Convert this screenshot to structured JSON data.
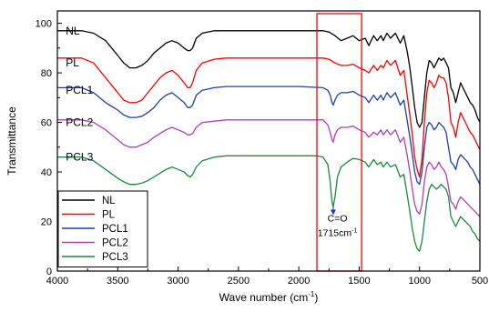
{
  "chart_data": {
    "type": "line",
    "xlabel": "Wave number (cm",
    "xlabel_sup": "-1",
    "xlabel_end": ")",
    "ylabel": "Transmittance",
    "xlim": [
      4000,
      500
    ],
    "ylim": [
      0,
      105
    ],
    "x_reversed": true,
    "x_ticks": [
      4000,
      3500,
      3000,
      2500,
      2000,
      1500,
      1000,
      500
    ],
    "y_ticks": [
      0,
      20,
      40,
      60,
      80,
      100
    ],
    "grid": false,
    "legend_position": "bottom-left",
    "series": [
      {
        "name": "NL",
        "color": "#000000",
        "label": "NL",
        "label_x": 3930,
        "label_y": 97,
        "x": [
          4000,
          3800,
          3700,
          3600,
          3500,
          3450,
          3400,
          3350,
          3300,
          3250,
          3200,
          3150,
          3100,
          3050,
          3000,
          2950,
          2920,
          2900,
          2880,
          2850,
          2800,
          2700,
          2600,
          2400,
          2200,
          2000,
          1800,
          1750,
          1700,
          1650,
          1600,
          1550,
          1500,
          1450,
          1420,
          1380,
          1350,
          1320,
          1300,
          1270,
          1240,
          1200,
          1160,
          1130,
          1100,
          1080,
          1060,
          1040,
          1020,
          1000,
          980,
          960,
          940,
          920,
          900,
          880,
          860,
          840,
          820,
          800,
          780,
          760,
          740,
          720,
          700,
          680,
          660,
          640,
          620,
          600,
          580,
          560,
          540,
          520,
          500
        ],
        "y": [
          97,
          97,
          96,
          93,
          87,
          84,
          82,
          82,
          83,
          85,
          88,
          90,
          92,
          93,
          92,
          90,
          89,
          89,
          90,
          94,
          96,
          97,
          97,
          97,
          97,
          97,
          97,
          96.5,
          95,
          93,
          94,
          95,
          93,
          94,
          91,
          95,
          93,
          95,
          93,
          96,
          94,
          96,
          92,
          95,
          88,
          82,
          74,
          66,
          60,
          58,
          60,
          70,
          80,
          85,
          84,
          82,
          84,
          86,
          85,
          86,
          84,
          82,
          74,
          72,
          68,
          72,
          76,
          74,
          72,
          70,
          68,
          67,
          65,
          62,
          60
        ]
      },
      {
        "name": "PL",
        "color": "#ff0000",
        "label": "PL",
        "label_x": 3930,
        "label_y": 84,
        "x": [
          4000,
          3800,
          3700,
          3600,
          3500,
          3450,
          3400,
          3350,
          3300,
          3250,
          3200,
          3150,
          3100,
          3050,
          3000,
          2950,
          2920,
          2900,
          2880,
          2850,
          2800,
          2700,
          2600,
          2400,
          2200,
          2000,
          1800,
          1750,
          1700,
          1650,
          1600,
          1550,
          1500,
          1450,
          1420,
          1380,
          1350,
          1320,
          1300,
          1270,
          1240,
          1200,
          1160,
          1130,
          1100,
          1080,
          1060,
          1040,
          1020,
          1000,
          980,
          960,
          940,
          920,
          900,
          880,
          860,
          840,
          820,
          800,
          780,
          760,
          740,
          720,
          700,
          680,
          660,
          640,
          620,
          600,
          580,
          560,
          540,
          520,
          500
        ],
        "y": [
          86,
          86,
          84,
          78,
          72,
          69,
          68,
          68,
          69,
          72,
          75,
          78,
          80,
          81,
          79,
          76,
          74,
          74,
          76,
          81,
          84,
          85.5,
          86,
          86,
          86,
          86,
          86,
          85.5,
          84,
          83,
          83,
          83.5,
          82,
          81,
          80,
          83,
          81,
          83,
          82,
          85,
          83,
          85,
          79,
          81,
          70,
          63,
          55,
          46,
          41,
          38,
          45,
          60,
          72,
          77,
          76,
          74,
          76,
          79,
          78,
          78,
          76,
          70,
          60,
          58,
          54,
          60,
          64,
          62,
          60,
          58,
          56,
          55,
          53,
          51,
          49
        ]
      },
      {
        "name": "PCL1",
        "color": "#1f3fa8",
        "label": "PCL1",
        "label_x": 3930,
        "label_y": 73,
        "x": [
          4000,
          3800,
          3700,
          3600,
          3500,
          3450,
          3400,
          3350,
          3300,
          3250,
          3200,
          3150,
          3100,
          3050,
          3000,
          2950,
          2920,
          2900,
          2880,
          2850,
          2800,
          2700,
          2600,
          2400,
          2200,
          2000,
          1800,
          1760,
          1740,
          1725,
          1715,
          1700,
          1680,
          1650,
          1600,
          1550,
          1500,
          1450,
          1420,
          1380,
          1350,
          1320,
          1300,
          1270,
          1240,
          1200,
          1160,
          1130,
          1100,
          1080,
          1060,
          1040,
          1020,
          1000,
          980,
          960,
          940,
          920,
          900,
          880,
          860,
          840,
          820,
          800,
          780,
          760,
          740,
          720,
          700,
          680,
          660,
          640,
          620,
          600,
          580,
          560,
          540,
          520,
          500
        ],
        "y": [
          74,
          74,
          72,
          68,
          65,
          63,
          62,
          62,
          62.5,
          64,
          66,
          69,
          71,
          72,
          70,
          68,
          66,
          66,
          67,
          71,
          73,
          74,
          74.5,
          74.5,
          74.5,
          74.5,
          74,
          73,
          71,
          68,
          67,
          69,
          71,
          72,
          72,
          72.5,
          71,
          70,
          68,
          71,
          69,
          71,
          69,
          72,
          70,
          72,
          67,
          69,
          60,
          54,
          47,
          40,
          36,
          35,
          40,
          50,
          58,
          60,
          59,
          57,
          58,
          60,
          59,
          58,
          56,
          50,
          44,
          43,
          41,
          45,
          47,
          46,
          45,
          44,
          42,
          41,
          39,
          37,
          35
        ]
      },
      {
        "name": "PCL2",
        "color": "#b040b0",
        "label": "PCL2",
        "label_x": 3930,
        "label_y": 60,
        "x": [
          4000,
          3800,
          3700,
          3600,
          3500,
          3450,
          3400,
          3350,
          3300,
          3250,
          3200,
          3150,
          3100,
          3050,
          3000,
          2950,
          2920,
          2900,
          2880,
          2850,
          2800,
          2700,
          2600,
          2400,
          2200,
          2000,
          1800,
          1760,
          1740,
          1725,
          1715,
          1700,
          1680,
          1650,
          1600,
          1550,
          1500,
          1450,
          1420,
          1380,
          1350,
          1320,
          1300,
          1270,
          1240,
          1200,
          1160,
          1130,
          1100,
          1080,
          1060,
          1040,
          1020,
          1000,
          980,
          960,
          940,
          920,
          900,
          880,
          860,
          840,
          820,
          800,
          780,
          760,
          740,
          720,
          700,
          680,
          660,
          640,
          620,
          600,
          580,
          560,
          540,
          520,
          500
        ],
        "y": [
          61,
          61,
          60,
          57,
          53,
          51,
          50,
          50,
          51,
          52,
          54,
          55.5,
          57,
          58,
          57,
          56,
          55,
          55,
          55.5,
          58,
          60,
          60.5,
          61,
          61,
          61,
          61,
          61,
          59,
          56,
          53,
          52,
          55,
          57,
          58,
          58,
          58.5,
          57,
          56,
          54,
          56,
          55,
          57,
          55,
          57,
          55,
          57,
          52,
          54,
          46,
          40,
          33,
          27,
          24,
          23,
          27,
          36,
          42,
          44,
          43,
          41,
          42,
          44,
          42,
          41,
          39,
          34,
          28,
          27,
          25,
          28,
          30,
          29,
          28,
          27,
          26,
          25,
          24,
          23,
          22
        ]
      },
      {
        "name": "PCL3",
        "color": "#1a8a3c",
        "label": "PCL3",
        "label_x": 3930,
        "label_y": 46,
        "x": [
          4000,
          3800,
          3700,
          3600,
          3500,
          3450,
          3400,
          3350,
          3300,
          3250,
          3200,
          3150,
          3100,
          3050,
          3000,
          2950,
          2920,
          2900,
          2880,
          2850,
          2800,
          2700,
          2600,
          2400,
          2200,
          2000,
          1850,
          1800,
          1760,
          1740,
          1725,
          1715,
          1700,
          1680,
          1650,
          1600,
          1550,
          1500,
          1450,
          1420,
          1380,
          1350,
          1320,
          1300,
          1270,
          1240,
          1200,
          1160,
          1130,
          1100,
          1080,
          1060,
          1040,
          1020,
          1000,
          980,
          960,
          940,
          920,
          900,
          880,
          860,
          840,
          820,
          800,
          780,
          760,
          740,
          720,
          700,
          680,
          660,
          640,
          620,
          600,
          580,
          560,
          540,
          520,
          500
        ],
        "y": [
          46,
          46,
          44.5,
          41,
          37.5,
          36,
          35,
          35,
          35.5,
          36.5,
          38,
          39.5,
          41,
          42,
          41,
          40,
          38.5,
          38,
          39,
          42,
          44.5,
          46,
          46.5,
          46.5,
          46.5,
          46.5,
          46.5,
          46,
          43,
          36,
          28,
          26,
          30,
          38,
          42,
          44,
          45.5,
          45,
          44,
          42,
          45,
          43,
          44,
          42,
          44,
          42,
          43,
          38,
          39,
          30,
          24,
          17,
          12,
          9,
          8,
          12,
          20,
          28,
          33,
          35,
          34,
          33,
          34,
          35,
          34,
          33,
          30,
          22,
          20,
          18,
          20,
          22,
          21,
          20,
          19,
          18,
          16,
          15,
          13,
          12
        ]
      }
    ],
    "highlight_box": {
      "x_from": 1850,
      "x_to": 1480,
      "y_from": 0,
      "y_to": 105,
      "color": "#ff0000"
    },
    "annotation": {
      "line1": "C=O",
      "line2": "1715cm",
      "line2_sup": "-1",
      "points_to_x": 1715,
      "points_to_y": 27,
      "text_x": 1680,
      "text_y": 17
    }
  }
}
